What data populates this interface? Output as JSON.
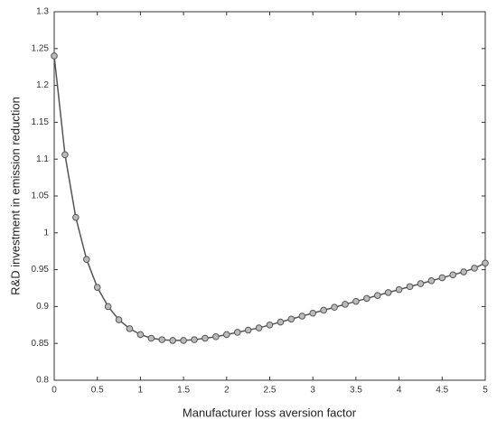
{
  "chart_data": {
    "type": "line",
    "xlabel": "Manufacturer loss aversion factor",
    "ylabel": "R&D investment in emission reduction",
    "x": [
      0,
      0.125,
      0.25,
      0.375,
      0.5,
      0.625,
      0.75,
      0.875,
      1,
      1.125,
      1.25,
      1.375,
      1.5,
      1.625,
      1.75,
      1.875,
      2,
      2.125,
      2.25,
      2.375,
      2.5,
      2.625,
      2.75,
      2.875,
      3,
      3.125,
      3.25,
      3.375,
      3.5,
      3.625,
      3.75,
      3.875,
      4,
      4.125,
      4.25,
      4.375,
      4.5,
      4.625,
      4.75,
      4.875,
      5
    ],
    "values": [
      1.24,
      1.106,
      1.021,
      0.964,
      0.926,
      0.9,
      0.882,
      0.87,
      0.862,
      0.857,
      0.855,
      0.854,
      0.854,
      0.855,
      0.857,
      0.859,
      0.862,
      0.865,
      0.868,
      0.871,
      0.875,
      0.879,
      0.883,
      0.887,
      0.891,
      0.895,
      0.899,
      0.903,
      0.907,
      0.911,
      0.915,
      0.919,
      0.923,
      0.927,
      0.931,
      0.935,
      0.939,
      0.943,
      0.947,
      0.952,
      0.959
    ],
    "color": "#555555",
    "xlim": [
      0,
      5
    ],
    "xticks": [
      0,
      0.5,
      1,
      1.5,
      2,
      2.5,
      3,
      3.5,
      4,
      4.5,
      5
    ],
    "ylim": [
      0.8,
      1.3
    ],
    "yticks": [
      0.8,
      0.85,
      0.9,
      0.95,
      1,
      1.05,
      1.1,
      1.15,
      1.2,
      1.25,
      1.3
    ],
    "grid": false
  }
}
